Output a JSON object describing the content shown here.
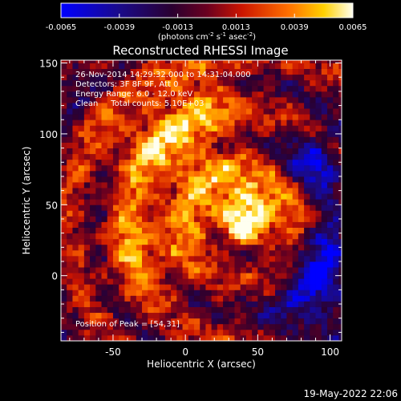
{
  "chart_data": {
    "type": "heatmap",
    "title": "Reconstructed RHESSI Image",
    "xlabel": "Heliocentric X (arcsec)",
    "ylabel": "Heliocentric Y (arcsec)",
    "xlim": [
      -86,
      108
    ],
    "ylim": [
      -46,
      152
    ],
    "x_ticks": [
      "-50",
      "0",
      "50",
      "100"
    ],
    "x_tick_values": [
      -50,
      0,
      50,
      100
    ],
    "y_ticks": [
      "0",
      "50",
      "100",
      "150"
    ],
    "y_tick_values": [
      0,
      50,
      100,
      150
    ],
    "colorbar": {
      "ticks": [
        "-0.0065",
        "-0.0039",
        "-0.0013",
        "0.0013",
        "0.0039",
        "0.0065"
      ],
      "tick_values": [
        -0.0065,
        -0.0039,
        -0.0013,
        0.0013,
        0.0039,
        0.0065
      ],
      "range": [
        -0.0065,
        0.0065
      ],
      "units_main": "(photons cm",
      "units_exp1": "-2",
      "units_mid": " s",
      "units_exp2": "-1",
      "units_tail": " asec",
      "units_exp3": "-2",
      "units_close": ")"
    },
    "annotations": [
      "26-Nov-2014 14:29:32.000 to 14:31:04.000",
      "Detectors: 3F 8F 9F, Att 0",
      "Energy Range: 6.0 - 12.0 keV",
      "Clean     Total counts: 5.10E+03"
    ],
    "peak_label": "Position of Peak = [54,31]",
    "peak_position": [
      54,
      31
    ],
    "image_grid": {
      "x_start": -86,
      "x_step": 4,
      "nx": 49,
      "y_start": -46,
      "y_step": 4,
      "ny": 50,
      "note_colormap": "blue-purple-red-orange-yellow-white"
    },
    "footer_date": "19-May-2022 22:06"
  },
  "colors": {
    "background": "#000000",
    "foreground": "#ffffff"
  }
}
